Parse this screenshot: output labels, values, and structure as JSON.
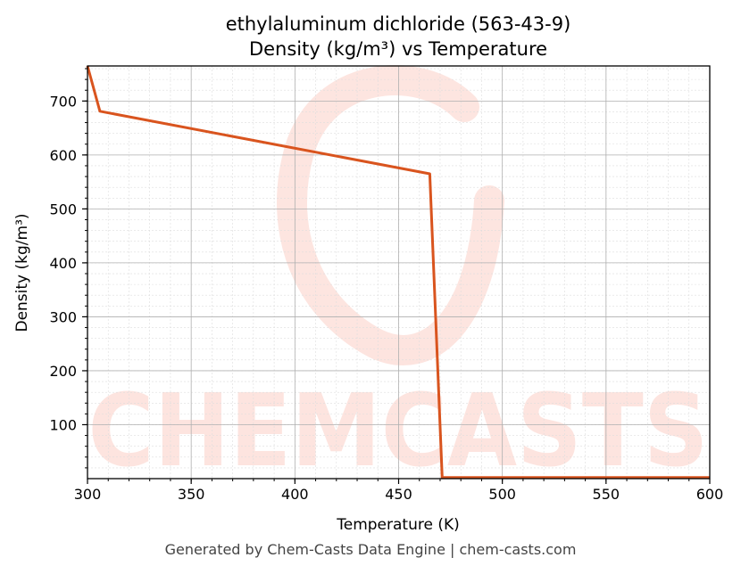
{
  "chart_data": {
    "type": "line",
    "title": "ethylaluminum dichloride (563-43-9)",
    "subtitle": "Density (kg/m³) vs Temperature",
    "xlabel": "Temperature (K)",
    "ylabel": "Density (kg/m³)",
    "xlim": [
      300,
      600
    ],
    "ylim": [
      0,
      765
    ],
    "x_ticks": [
      300,
      350,
      400,
      450,
      500,
      550,
      600
    ],
    "y_ticks": [
      100,
      200,
      300,
      400,
      500,
      600,
      700
    ],
    "grid": true,
    "series": [
      {
        "color": "#d9541e",
        "x": [
          300,
          306,
          465,
          471,
          600
        ],
        "y": [
          765,
          681,
          565,
          2,
          2
        ]
      }
    ]
  },
  "watermark": {
    "text": "CHEMCASTS",
    "color": "#fde0da"
  },
  "footer": "Generated by Chem-Casts Data Engine | chem-casts.com"
}
